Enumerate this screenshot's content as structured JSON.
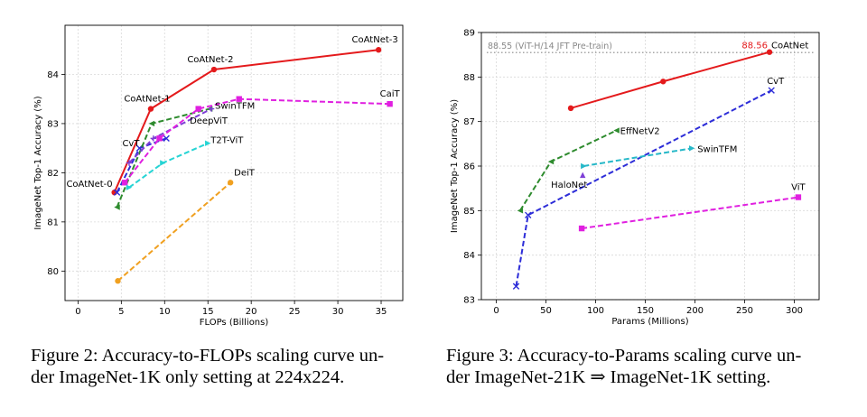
{
  "chart_data": [
    {
      "type": "line",
      "xlabel": "FLOPs (Billions)",
      "ylabel": "ImageNet Top-1 Accuracy (%)",
      "xlim": [
        -1.5,
        37.5
      ],
      "ylim": [
        79.4,
        85.0
      ],
      "xticks": [
        0,
        5,
        10,
        15,
        20,
        25,
        30,
        35
      ],
      "yticks": [
        80,
        81,
        82,
        83,
        84
      ],
      "grid": true,
      "series": [
        {
          "name": "CoAtNet",
          "color": "#e41a1c",
          "dash": "solid",
          "marker": "o",
          "x": [
            4.2,
            8.4,
            15.7,
            34.7
          ],
          "y": [
            81.6,
            83.3,
            84.1,
            84.5
          ]
        },
        {
          "name": "CvT",
          "color": "#2d2dd8",
          "dash": "dash",
          "marker": "x",
          "x": [
            4.5,
            7.1,
            10.2
          ],
          "y": [
            81.6,
            82.5,
            82.7
          ]
        },
        {
          "name": "DeepViT",
          "color": "#2e8b2e",
          "dash": "dash",
          "marker": "<",
          "x": [
            4.5,
            8.5,
            15.2
          ],
          "y": [
            81.3,
            83.0,
            83.3
          ]
        },
        {
          "name": "SwinTFM",
          "color": "#7e3fd6",
          "dash": "dash",
          "marker": "+",
          "x": [
            5.9,
            8.7,
            15.4
          ],
          "y": [
            82.2,
            82.7,
            83.3
          ]
        },
        {
          "name": "CaiT",
          "color": "#e020e0",
          "dash": "dash",
          "marker": "s",
          "x": [
            5.4,
            9.4,
            13.9,
            18.6,
            36.0
          ],
          "y": [
            81.8,
            82.7,
            83.3,
            83.5,
            83.4
          ]
        },
        {
          "name": "T2T-ViT",
          "color": "#26d4d4",
          "dash": "dash",
          "marker": ">",
          "x": [
            5.9,
            9.8,
            15.0
          ],
          "y": [
            81.7,
            82.2,
            82.6
          ]
        },
        {
          "name": "DeiT",
          "color": "#f0a020",
          "dash": "dash",
          "marker": "o",
          "x": [
            4.6,
            17.6
          ],
          "y": [
            79.8,
            81.8
          ]
        }
      ],
      "annotations": [
        {
          "text": "CoAtNet-0",
          "x": 4.2,
          "y": 81.6,
          "anchor": "end",
          "dx": -2,
          "dy": -6
        },
        {
          "text": "CoAtNet-1",
          "x": 8.4,
          "y": 83.3,
          "anchor": "middle",
          "dx": -4,
          "dy": -8
        },
        {
          "text": "CoAtNet-2",
          "x": 15.7,
          "y": 84.1,
          "anchor": "middle",
          "dx": -4,
          "dy": -8
        },
        {
          "text": "CoAtNet-3",
          "x": 34.7,
          "y": 84.5,
          "anchor": "middle",
          "dx": -4,
          "dy": -8
        },
        {
          "text": "CvT",
          "x": 7.1,
          "y": 82.5,
          "anchor": "end",
          "dx": 0,
          "dy": -2
        },
        {
          "text": "DeepViT",
          "x": 12.9,
          "y": 83.0,
          "anchor": "start",
          "dx": 0,
          "dy": 0
        },
        {
          "text": "SwinTFM",
          "x": 15.4,
          "y": 83.3,
          "anchor": "start",
          "dx": 4,
          "dy": 0
        },
        {
          "text": "CaiT",
          "x": 36.0,
          "y": 83.4,
          "anchor": "middle",
          "dx": 0,
          "dy": -8
        },
        {
          "text": "T2T-ViT",
          "x": 15.0,
          "y": 82.6,
          "anchor": "start",
          "dx": 3,
          "dy": 0
        },
        {
          "text": "DeiT",
          "x": 17.6,
          "y": 81.8,
          "anchor": "start",
          "dx": 4,
          "dy": -8
        }
      ]
    },
    {
      "type": "line",
      "xlabel": "Params (Millions)",
      "ylabel": "ImageNet Top-1 Accuracy (%)",
      "xlim": [
        -15,
        325
      ],
      "ylim": [
        83.0,
        89.0
      ],
      "xticks": [
        0,
        50,
        100,
        150,
        200,
        250,
        300
      ],
      "yticks": [
        83,
        84,
        85,
        86,
        87,
        88,
        89
      ],
      "grid": true,
      "reference_line": {
        "y": 88.55,
        "label": "88.55 (ViT-H/14 JFT Pre-train)",
        "color": "#888888"
      },
      "series": [
        {
          "name": "CoAtNet",
          "color": "#e41a1c",
          "dash": "solid",
          "marker": "o",
          "x": [
            75,
            168,
            275
          ],
          "y": [
            87.3,
            87.9,
            88.56
          ]
        },
        {
          "name": "CvT",
          "color": "#2d2dd8",
          "dash": "dash",
          "marker": "x",
          "x": [
            20,
            32,
            277
          ],
          "y": [
            83.3,
            84.9,
            87.7
          ]
        },
        {
          "name": "EffNetV2",
          "color": "#2e8b2e",
          "dash": "dash",
          "marker": "<",
          "x": [
            24,
            55,
            121
          ],
          "y": [
            85.0,
            86.1,
            86.8
          ]
        },
        {
          "name": "SwinTFM",
          "color": "#26b8c8",
          "dash": "dash",
          "marker": ">",
          "x": [
            88,
            197
          ],
          "y": [
            86.0,
            86.4
          ]
        },
        {
          "name": "HaloNet",
          "color": "#7e3fd6",
          "dash": "dash",
          "marker": "^",
          "x": [
            87
          ],
          "y": [
            85.8
          ]
        },
        {
          "name": "ViT",
          "color": "#e020e0",
          "dash": "dash",
          "marker": "s",
          "x": [
            86,
            304
          ],
          "y": [
            84.6,
            85.3
          ]
        }
      ],
      "annotations": [
        {
          "text": "88.56",
          "x": 275,
          "y": 88.56,
          "anchor": "end",
          "dx": -2,
          "dy": -4,
          "color": "#e41a1c"
        },
        {
          "text": "CoAtNet",
          "x": 275,
          "y": 88.56,
          "anchor": "start",
          "dx": 2,
          "dy": -4
        },
        {
          "text": "CvT",
          "x": 277,
          "y": 87.7,
          "anchor": "start",
          "dx": -5,
          "dy": -7
        },
        {
          "text": "EffNetV2",
          "x": 121,
          "y": 86.8,
          "anchor": "start",
          "dx": 4,
          "dy": 4
        },
        {
          "text": "SwinTFM",
          "x": 197,
          "y": 86.4,
          "anchor": "start",
          "dx": 6,
          "dy": 4
        },
        {
          "text": "HaloNet",
          "x": 87,
          "y": 85.8,
          "anchor": "middle",
          "dx": -15,
          "dy": 14
        },
        {
          "text": "ViT",
          "x": 304,
          "y": 85.3,
          "anchor": "middle",
          "dx": 0,
          "dy": -8
        }
      ]
    }
  ],
  "captions": [
    {
      "line1": "Figure 2: Accuracy-to-FLOPs scaling curve un-",
      "line2": "der ImageNet-1K only setting at 224x224."
    },
    {
      "line1": "Figure 3: Accuracy-to-Params scaling curve un-",
      "line2": "der ImageNet-21K ⇒ ImageNet-1K setting."
    }
  ]
}
